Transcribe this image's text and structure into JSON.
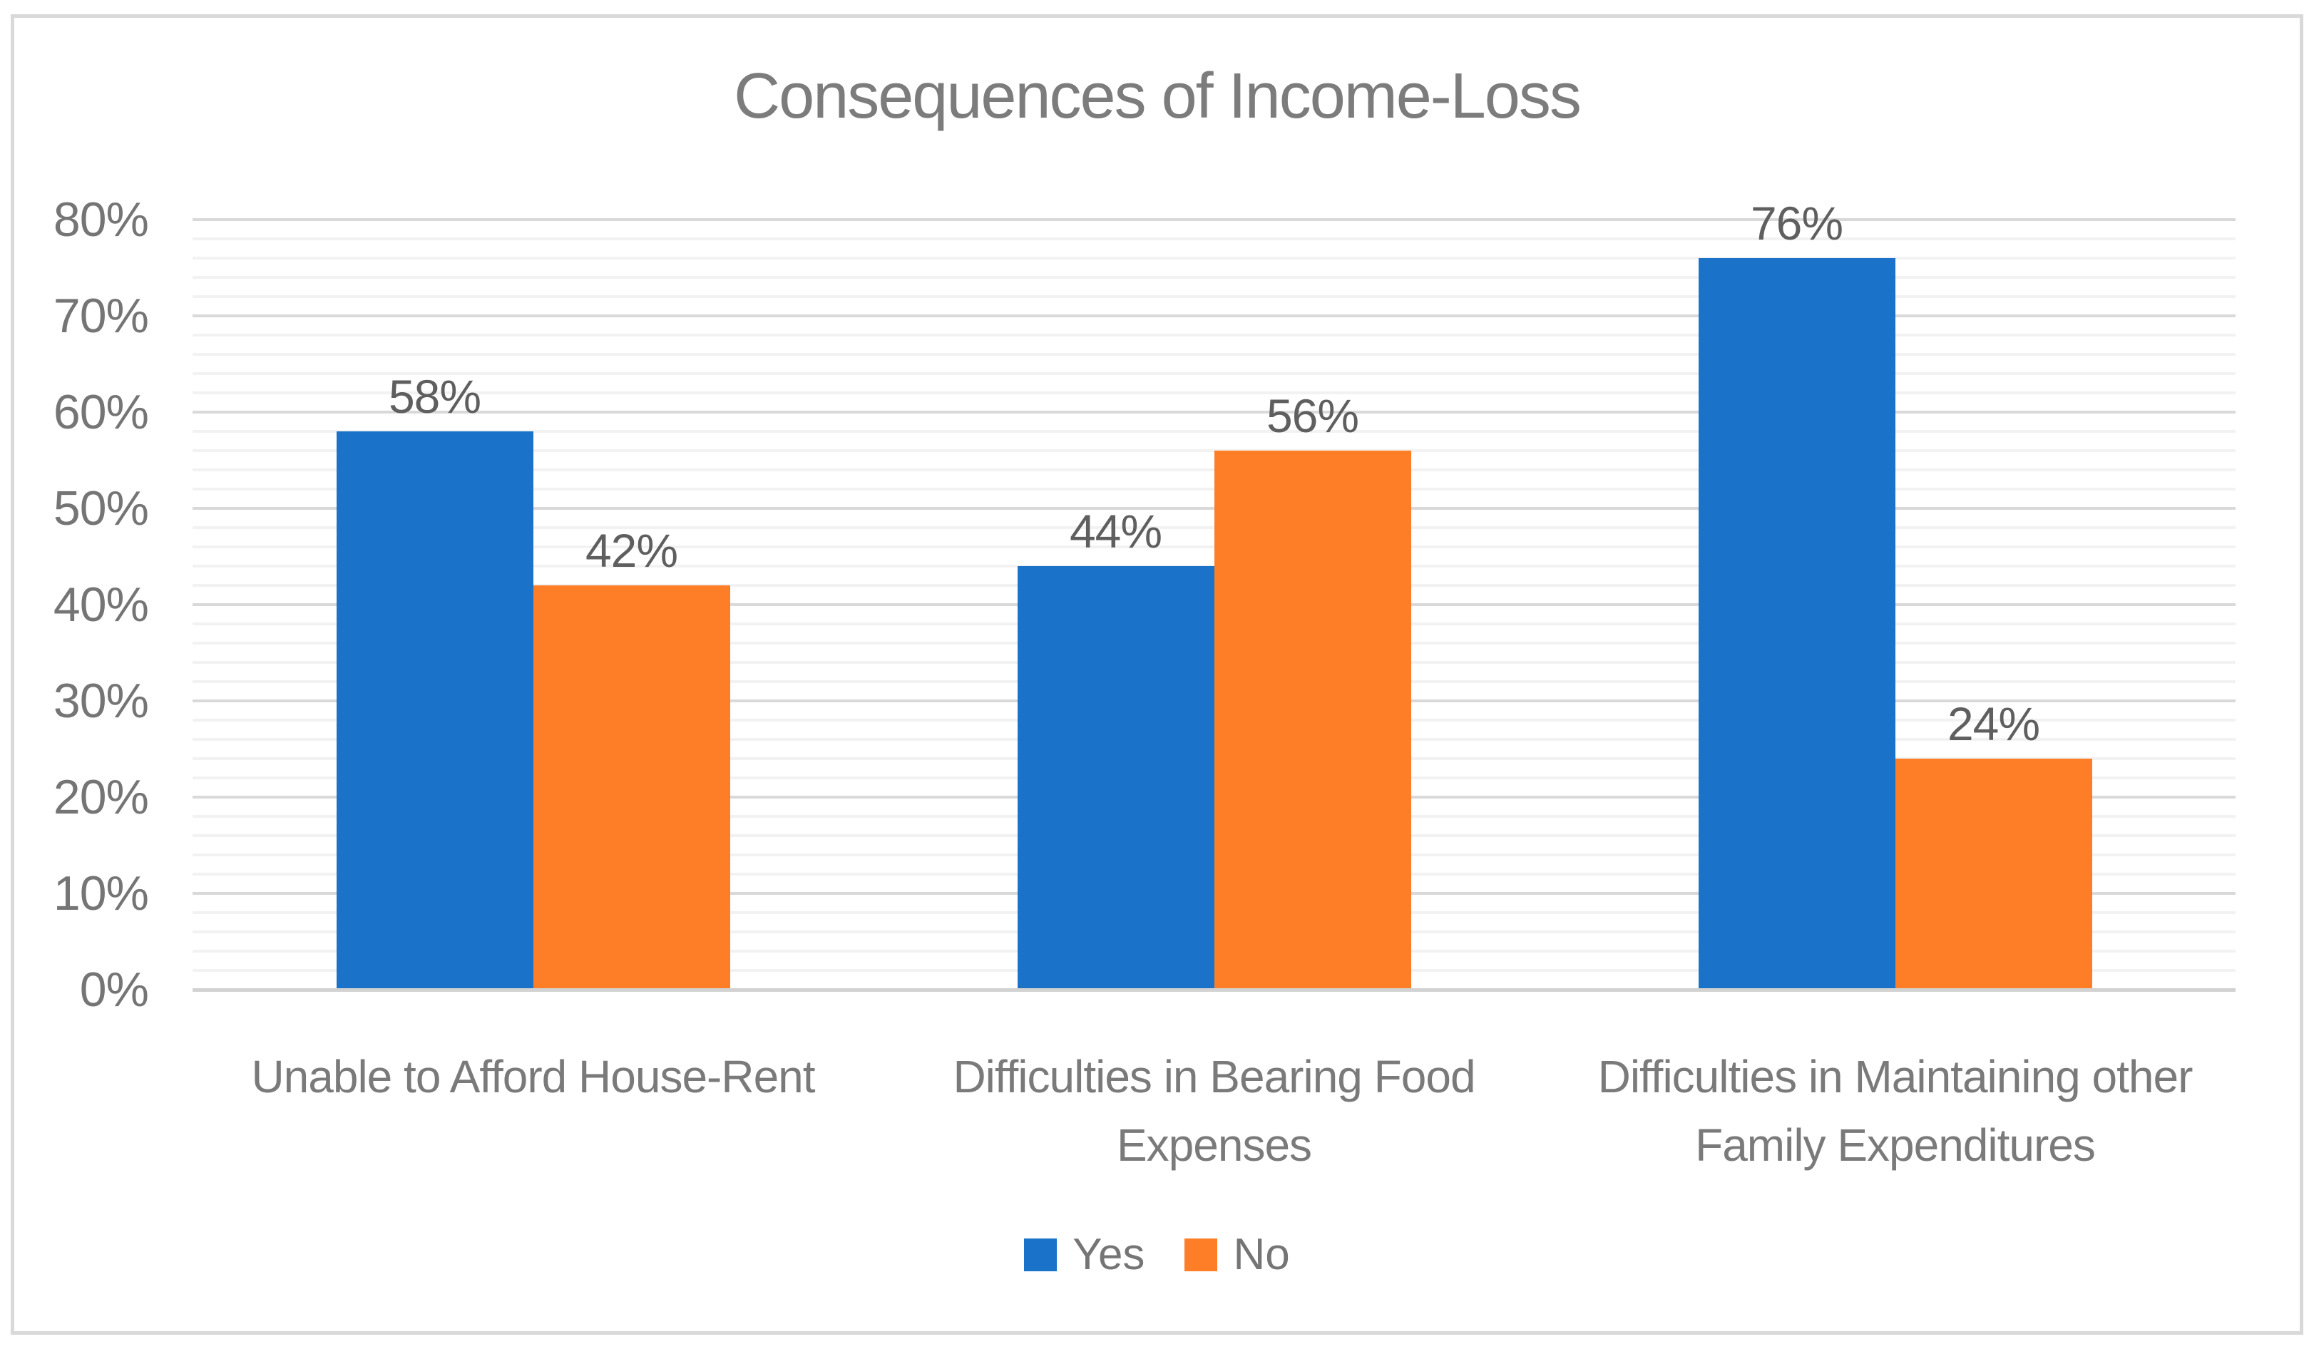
{
  "chart_data": {
    "type": "bar",
    "title": "Consequences of Income-Loss",
    "categories": [
      "Unable to Afford House-Rent",
      "Difficulties in Bearing Food Expenses",
      "Difficulties in Maintaining other Family Expenditures"
    ],
    "series": [
      {
        "name": "Yes",
        "color": "#1A73C8",
        "values": [
          58,
          44,
          76
        ]
      },
      {
        "name": "No",
        "color": "#FD7E27",
        "values": [
          42,
          56,
          24
        ]
      }
    ],
    "value_suffix": "%",
    "data_labels": {
      "Yes": [
        "58%",
        "44%",
        "76%"
      ],
      "No": [
        "42%",
        "56%",
        "24%"
      ]
    },
    "y_axis": {
      "min": 0,
      "max": 80,
      "major_unit": 10,
      "minor_unit": 2,
      "tick_labels": [
        "0%",
        "10%",
        "20%",
        "30%",
        "40%",
        "50%",
        "60%",
        "70%",
        "80%"
      ]
    },
    "legend": {
      "position": "bottom",
      "entries": [
        "Yes",
        "No"
      ]
    },
    "grid": {
      "major": true,
      "minor": true
    }
  },
  "colors": {
    "bar_yes": "#1A73C8",
    "bar_no": "#FD7E27",
    "major_gridline": "#D9D9D9",
    "minor_gridline": "#F2F2F2",
    "axis_line": "#D2D2D2",
    "frame_border": "#D9D9D9",
    "title_text": "#7C7C7C",
    "tick_text": "#757575",
    "category_text": "#7A7A7A",
    "data_label_text": "#5F5F5F",
    "legend_text": "#757575"
  }
}
